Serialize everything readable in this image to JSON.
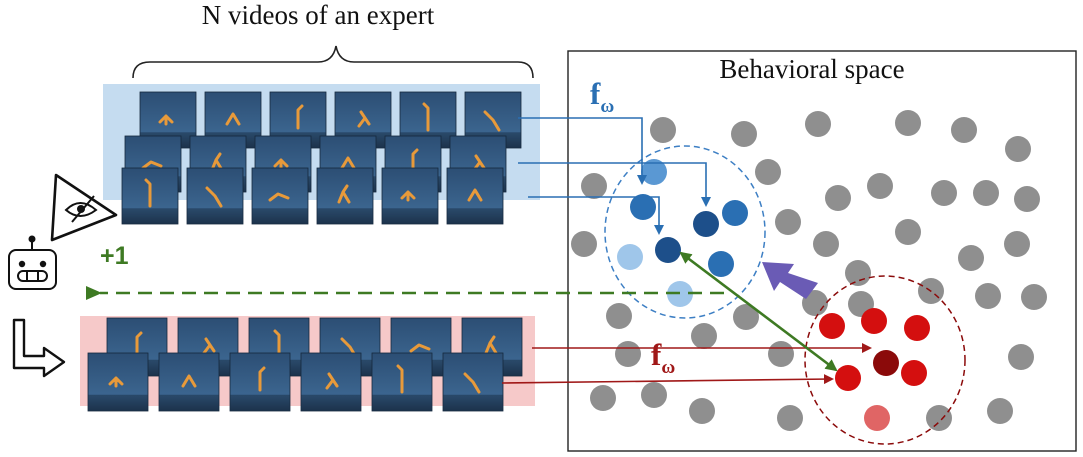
{
  "title": "N videos of an expert",
  "space_label": "Behavioral space",
  "embed_symbol": "f",
  "embed_subscript": "ω",
  "reward_label": "+1",
  "colors": {
    "expert_bg": "#c5dcf0",
    "agent_bg": "#f6c9c9",
    "thumb_dark": "#2a4a6e",
    "thumb_light": "#5f86ad",
    "robot_limb": "#e89a3a",
    "gray_point": "#8f8f8f",
    "blue_arrow": "#2a6fb3",
    "red_arrow": "#a01818",
    "green": "#3e7a23",
    "purple": "#6a5bb5",
    "blue_points": [
      "#1d4f8a",
      "#2a6fb3",
      "#5a98d3",
      "#9fc6ea"
    ],
    "red_points": [
      "#d40f0f",
      "#8b0a0a",
      "#e06565"
    ]
  },
  "icons": {
    "eye": "eye-icon",
    "robot": "robot-icon",
    "loop": "loop-arrow-icon"
  }
}
